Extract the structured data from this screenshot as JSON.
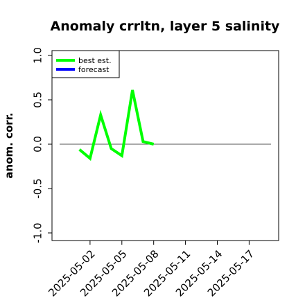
{
  "chart_data": {
    "type": "line",
    "title": "Anomaly crrltn, layer 5 salinity",
    "xlabel": "",
    "ylabel": "anom. corr.",
    "ylim": [
      -1.0,
      1.0
    ],
    "yticks": [
      "-1.0",
      "-0.5",
      "0.0",
      "0.5",
      "1.0"
    ],
    "xlim": [
      "2025-04-29",
      "2025-05-19"
    ],
    "xticks": [
      {
        "date": "2025-05-02",
        "label": "2025-05-02",
        "color": "#000000"
      },
      {
        "date": "2025-05-05",
        "label": "2025-05-05",
        "color": "#000000"
      },
      {
        "date": "2025-05-08",
        "label": "2025-05-08",
        "color": "#228b22"
      },
      {
        "date": "2025-05-11",
        "label": "2025-05-11",
        "color": "#000000"
      },
      {
        "date": "2025-05-14",
        "label": "2025-05-14",
        "color": "#000000"
      },
      {
        "date": "2025-05-17",
        "label": "2025-05-17",
        "color": "#000000"
      }
    ],
    "reference_line": {
      "y": 0.0,
      "color": "#555555"
    },
    "series": [
      {
        "name": "best est.",
        "color": "#00ff00",
        "x": [
          "2025-05-01",
          "2025-05-02",
          "2025-05-03",
          "2025-05-04",
          "2025-05-05",
          "2025-05-06",
          "2025-05-07",
          "2025-05-08"
        ],
        "values": [
          -0.06,
          -0.16,
          0.33,
          -0.05,
          -0.13,
          0.61,
          0.03,
          0.0
        ]
      },
      {
        "name": "forecast",
        "color": "#0000ff",
        "x": [],
        "values": []
      }
    ],
    "legend": {
      "position": "top-left"
    },
    "grid": false
  }
}
